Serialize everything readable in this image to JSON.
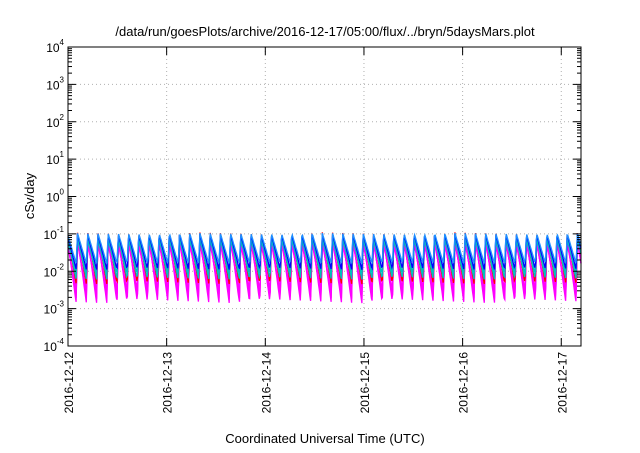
{
  "chart_data": {
    "type": "line",
    "title": "/data/run/goesPlots/archive/2016-12-17/05:00/flux/../bryn/5daysMars.plot",
    "xlabel": "Coordinated Universal Time (UTC)",
    "ylabel": "cSv/day",
    "yscale": "log",
    "grid": true,
    "legend": "none",
    "x_range_days": [
      0,
      5.2
    ],
    "x_ticks": [
      {
        "label": "2016-12-12",
        "day": 0
      },
      {
        "label": "2016-12-13",
        "day": 1
      },
      {
        "label": "2016-12-14",
        "day": 2
      },
      {
        "label": "2016-12-15",
        "day": 3
      },
      {
        "label": "2016-12-16",
        "day": 4
      },
      {
        "label": "2016-12-17",
        "day": 5
      }
    ],
    "y_ticks": [
      {
        "base": "10",
        "exp": "4",
        "value": 10000
      },
      {
        "base": "10",
        "exp": "3",
        "value": 1000
      },
      {
        "base": "10",
        "exp": "2",
        "value": 100
      },
      {
        "base": "10",
        "exp": "1",
        "value": 10
      },
      {
        "base": "10",
        "exp": "0",
        "value": 1
      },
      {
        "base": "10",
        "exp": "-1",
        "value": 0.1
      },
      {
        "base": "10",
        "exp": "-2",
        "value": 0.01
      },
      {
        "base": "10",
        "exp": "-3",
        "value": 0.001
      },
      {
        "base": "10",
        "exp": "-4",
        "value": 0.0001
      }
    ],
    "ylim": [
      0.0001,
      10000
    ],
    "cycles_per_day": 9.67,
    "series": [
      {
        "color": "#ff00ff",
        "peak": 0.085,
        "trough": 0.0014
      },
      {
        "color": "#ff00ff",
        "peak": 0.075,
        "trough": 0.0018
      },
      {
        "color": "#ff00ff",
        "peak": 0.065,
        "trough": 0.0024
      },
      {
        "color": "#ff00ff",
        "peak": 0.055,
        "trough": 0.0032
      },
      {
        "color": "#ff0000",
        "peak": 0.11,
        "trough": 0.0045
      },
      {
        "color": "#00bfbf",
        "peak": 0.09,
        "trough": 0.006
      },
      {
        "color": "#00bfbf",
        "peak": 0.07,
        "trough": 0.0085
      },
      {
        "color": "#0000ff",
        "peak": 0.1,
        "trough": 0.011
      },
      {
        "color": "#1e90ff",
        "peak": 0.105,
        "trough": 0.016
      }
    ]
  }
}
